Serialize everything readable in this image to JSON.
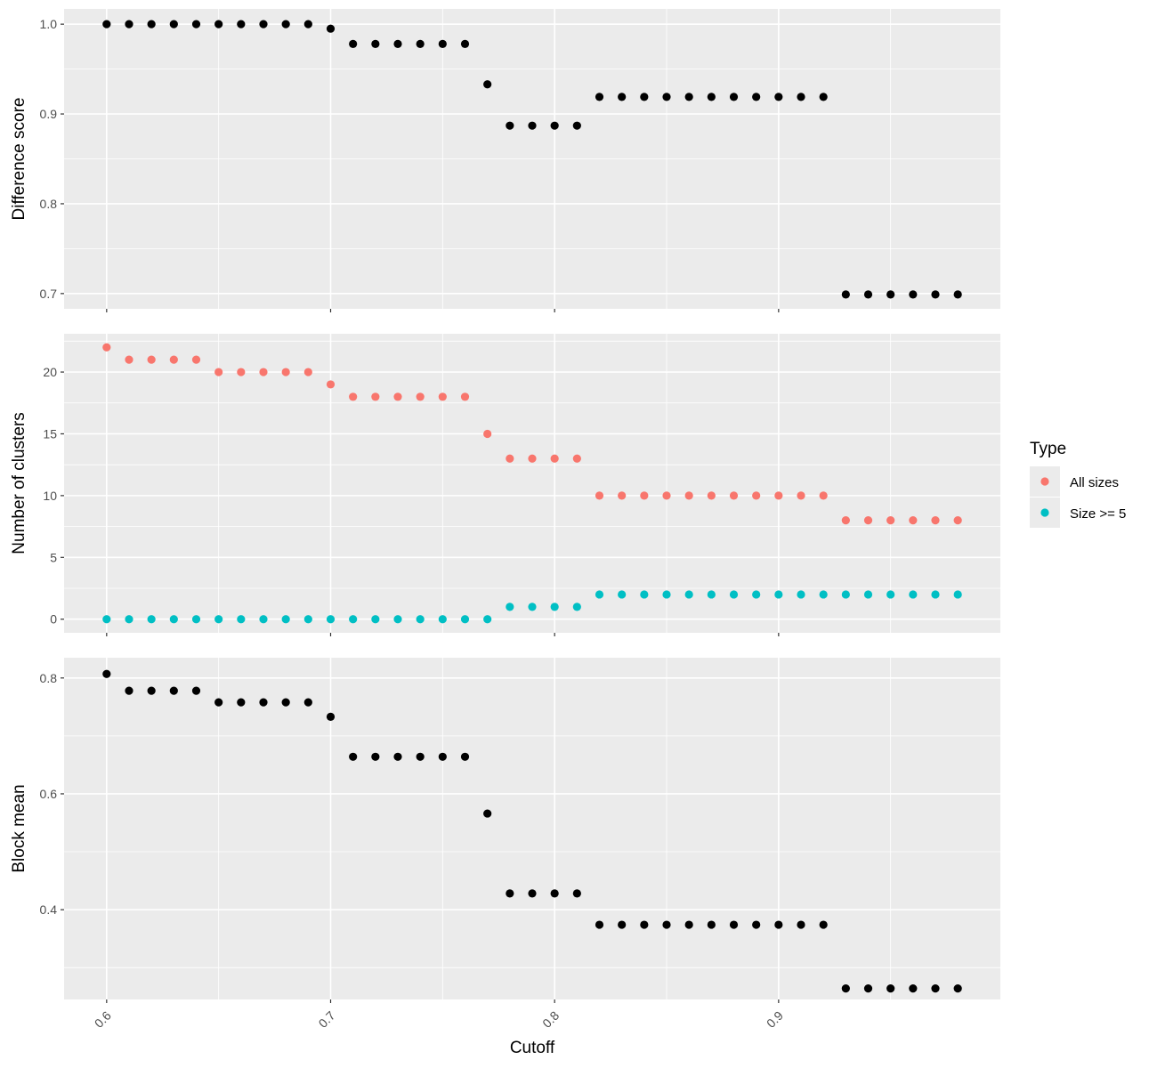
{
  "chart_data": [
    {
      "type": "scatter",
      "panel": 1,
      "ylabel": "Difference score",
      "ylim": [
        0.683,
        1.017
      ],
      "yticks": [
        0.7,
        0.8,
        0.9,
        1.0
      ],
      "ytick_labels": [
        "0.7",
        "0.8",
        "0.9",
        "1.0"
      ],
      "color": "#000000",
      "series": [
        {
          "x": [
            0.6,
            0.61,
            0.62,
            0.63,
            0.64,
            0.65,
            0.66,
            0.67,
            0.68,
            0.69,
            0.7,
            0.71,
            0.72,
            0.73,
            0.74,
            0.75,
            0.76,
            0.77,
            0.78,
            0.79,
            0.8,
            0.81,
            0.82,
            0.83,
            0.84,
            0.85,
            0.86,
            0.87,
            0.88,
            0.89,
            0.9,
            0.91,
            0.92,
            0.93,
            0.94,
            0.95,
            0.96,
            0.97,
            0.98
          ],
          "y": [
            1.0,
            1.0,
            1.0,
            1.0,
            1.0,
            1.0,
            1.0,
            1.0,
            1.0,
            1.0,
            0.995,
            0.978,
            0.978,
            0.978,
            0.978,
            0.978,
            0.978,
            0.933,
            0.887,
            0.887,
            0.887,
            0.887,
            0.919,
            0.919,
            0.919,
            0.919,
            0.919,
            0.919,
            0.919,
            0.919,
            0.919,
            0.919,
            0.919,
            0.699,
            0.699,
            0.699,
            0.699,
            0.699,
            0.699
          ]
        }
      ]
    },
    {
      "type": "scatter",
      "panel": 2,
      "ylabel": "Number of clusters",
      "ylim": [
        -1.1,
        23.1
      ],
      "yticks": [
        0,
        5,
        10,
        15,
        20
      ],
      "ytick_labels": [
        "0",
        "5",
        "10",
        "15",
        "20"
      ],
      "legend": {
        "title": "Type",
        "position": "right"
      },
      "series": [
        {
          "name": "All sizes",
          "color": "#F8766D",
          "x": [
            0.6,
            0.61,
            0.62,
            0.63,
            0.64,
            0.65,
            0.66,
            0.67,
            0.68,
            0.69,
            0.7,
            0.71,
            0.72,
            0.73,
            0.74,
            0.75,
            0.76,
            0.77,
            0.78,
            0.79,
            0.8,
            0.81,
            0.82,
            0.83,
            0.84,
            0.85,
            0.86,
            0.87,
            0.88,
            0.89,
            0.9,
            0.91,
            0.92,
            0.93,
            0.94,
            0.95,
            0.96,
            0.97,
            0.98
          ],
          "y": [
            22,
            21,
            21,
            21,
            21,
            20,
            20,
            20,
            20,
            20,
            19,
            18,
            18,
            18,
            18,
            18,
            18,
            15,
            13,
            13,
            13,
            13,
            10,
            10,
            10,
            10,
            10,
            10,
            10,
            10,
            10,
            10,
            10,
            8,
            8,
            8,
            8,
            8,
            8
          ]
        },
        {
          "name": "Size >= 5",
          "color": "#00BFC4",
          "x": [
            0.6,
            0.61,
            0.62,
            0.63,
            0.64,
            0.65,
            0.66,
            0.67,
            0.68,
            0.69,
            0.7,
            0.71,
            0.72,
            0.73,
            0.74,
            0.75,
            0.76,
            0.77,
            0.78,
            0.79,
            0.8,
            0.81,
            0.82,
            0.83,
            0.84,
            0.85,
            0.86,
            0.87,
            0.88,
            0.89,
            0.9,
            0.91,
            0.92,
            0.93,
            0.94,
            0.95,
            0.96,
            0.97,
            0.98
          ],
          "y": [
            0,
            0,
            0,
            0,
            0,
            0,
            0,
            0,
            0,
            0,
            0,
            0,
            0,
            0,
            0,
            0,
            0,
            0,
            1,
            1,
            1,
            1,
            2,
            2,
            2,
            2,
            2,
            2,
            2,
            2,
            2,
            2,
            2,
            2,
            2,
            2,
            2,
            2,
            2
          ]
        }
      ]
    },
    {
      "type": "scatter",
      "panel": 3,
      "ylabel": "Block mean",
      "xlabel": "Cutoff",
      "ylim": [
        0.245,
        0.835
      ],
      "yticks": [
        0.4,
        0.6,
        0.8
      ],
      "ytick_labels": [
        "0.4",
        "0.6",
        "0.8"
      ],
      "color": "#000000",
      "series": [
        {
          "x": [
            0.6,
            0.61,
            0.62,
            0.63,
            0.64,
            0.65,
            0.66,
            0.67,
            0.68,
            0.69,
            0.7,
            0.71,
            0.72,
            0.73,
            0.74,
            0.75,
            0.76,
            0.77,
            0.78,
            0.79,
            0.8,
            0.81,
            0.82,
            0.83,
            0.84,
            0.85,
            0.86,
            0.87,
            0.88,
            0.89,
            0.9,
            0.91,
            0.92,
            0.93,
            0.94,
            0.95,
            0.96,
            0.97,
            0.98
          ],
          "y": [
            0.807,
            0.778,
            0.778,
            0.778,
            0.778,
            0.758,
            0.758,
            0.758,
            0.758,
            0.758,
            0.733,
            0.664,
            0.664,
            0.664,
            0.664,
            0.664,
            0.664,
            0.566,
            0.428,
            0.428,
            0.428,
            0.428,
            0.374,
            0.374,
            0.374,
            0.374,
            0.374,
            0.374,
            0.374,
            0.374,
            0.374,
            0.374,
            0.374,
            0.264,
            0.264,
            0.264,
            0.264,
            0.264,
            0.264
          ]
        }
      ]
    }
  ],
  "x_axis": {
    "label": "Cutoff",
    "xlim": [
      0.581,
      0.999
    ],
    "ticks": [
      0.6,
      0.7,
      0.8,
      0.9
    ],
    "tick_labels": [
      "0.6",
      "0.7",
      "0.8",
      "0.9"
    ]
  }
}
